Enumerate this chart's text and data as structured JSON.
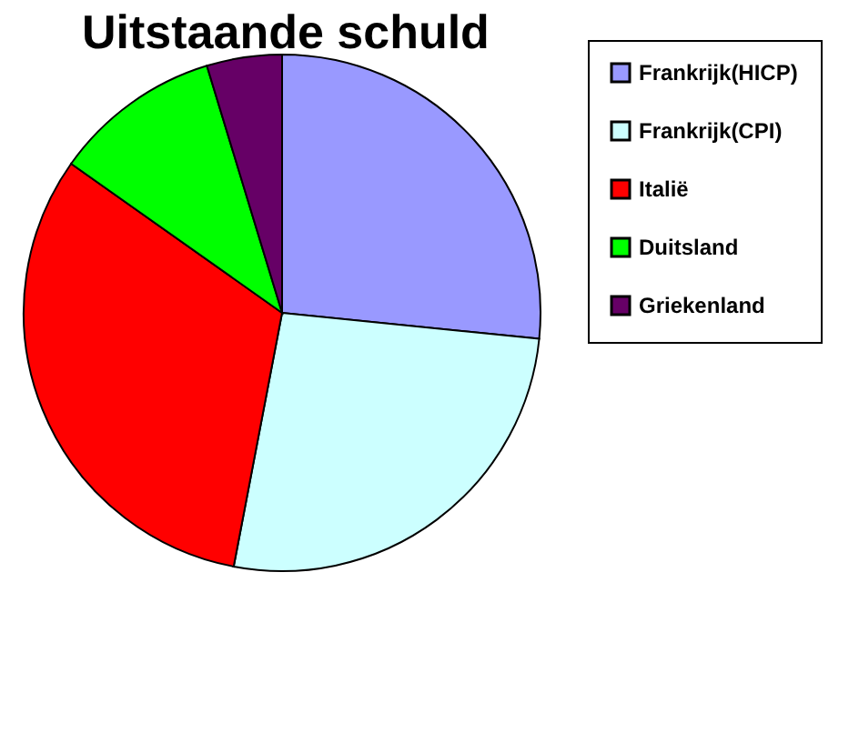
{
  "chart_data": {
    "type": "pie",
    "title": "Uitstaande schuld",
    "categories": [
      "Frankrijk(HICP)",
      "Frankrijk(CPI)",
      "Italië",
      "Duitsland",
      "Griekenland"
    ],
    "values": [
      26.6,
      26.4,
      31.8,
      10.5,
      4.7
    ],
    "colors": [
      "#9999ff",
      "#ccffff",
      "#ff0000",
      "#00ff00",
      "#660066"
    ],
    "legend": "right"
  }
}
